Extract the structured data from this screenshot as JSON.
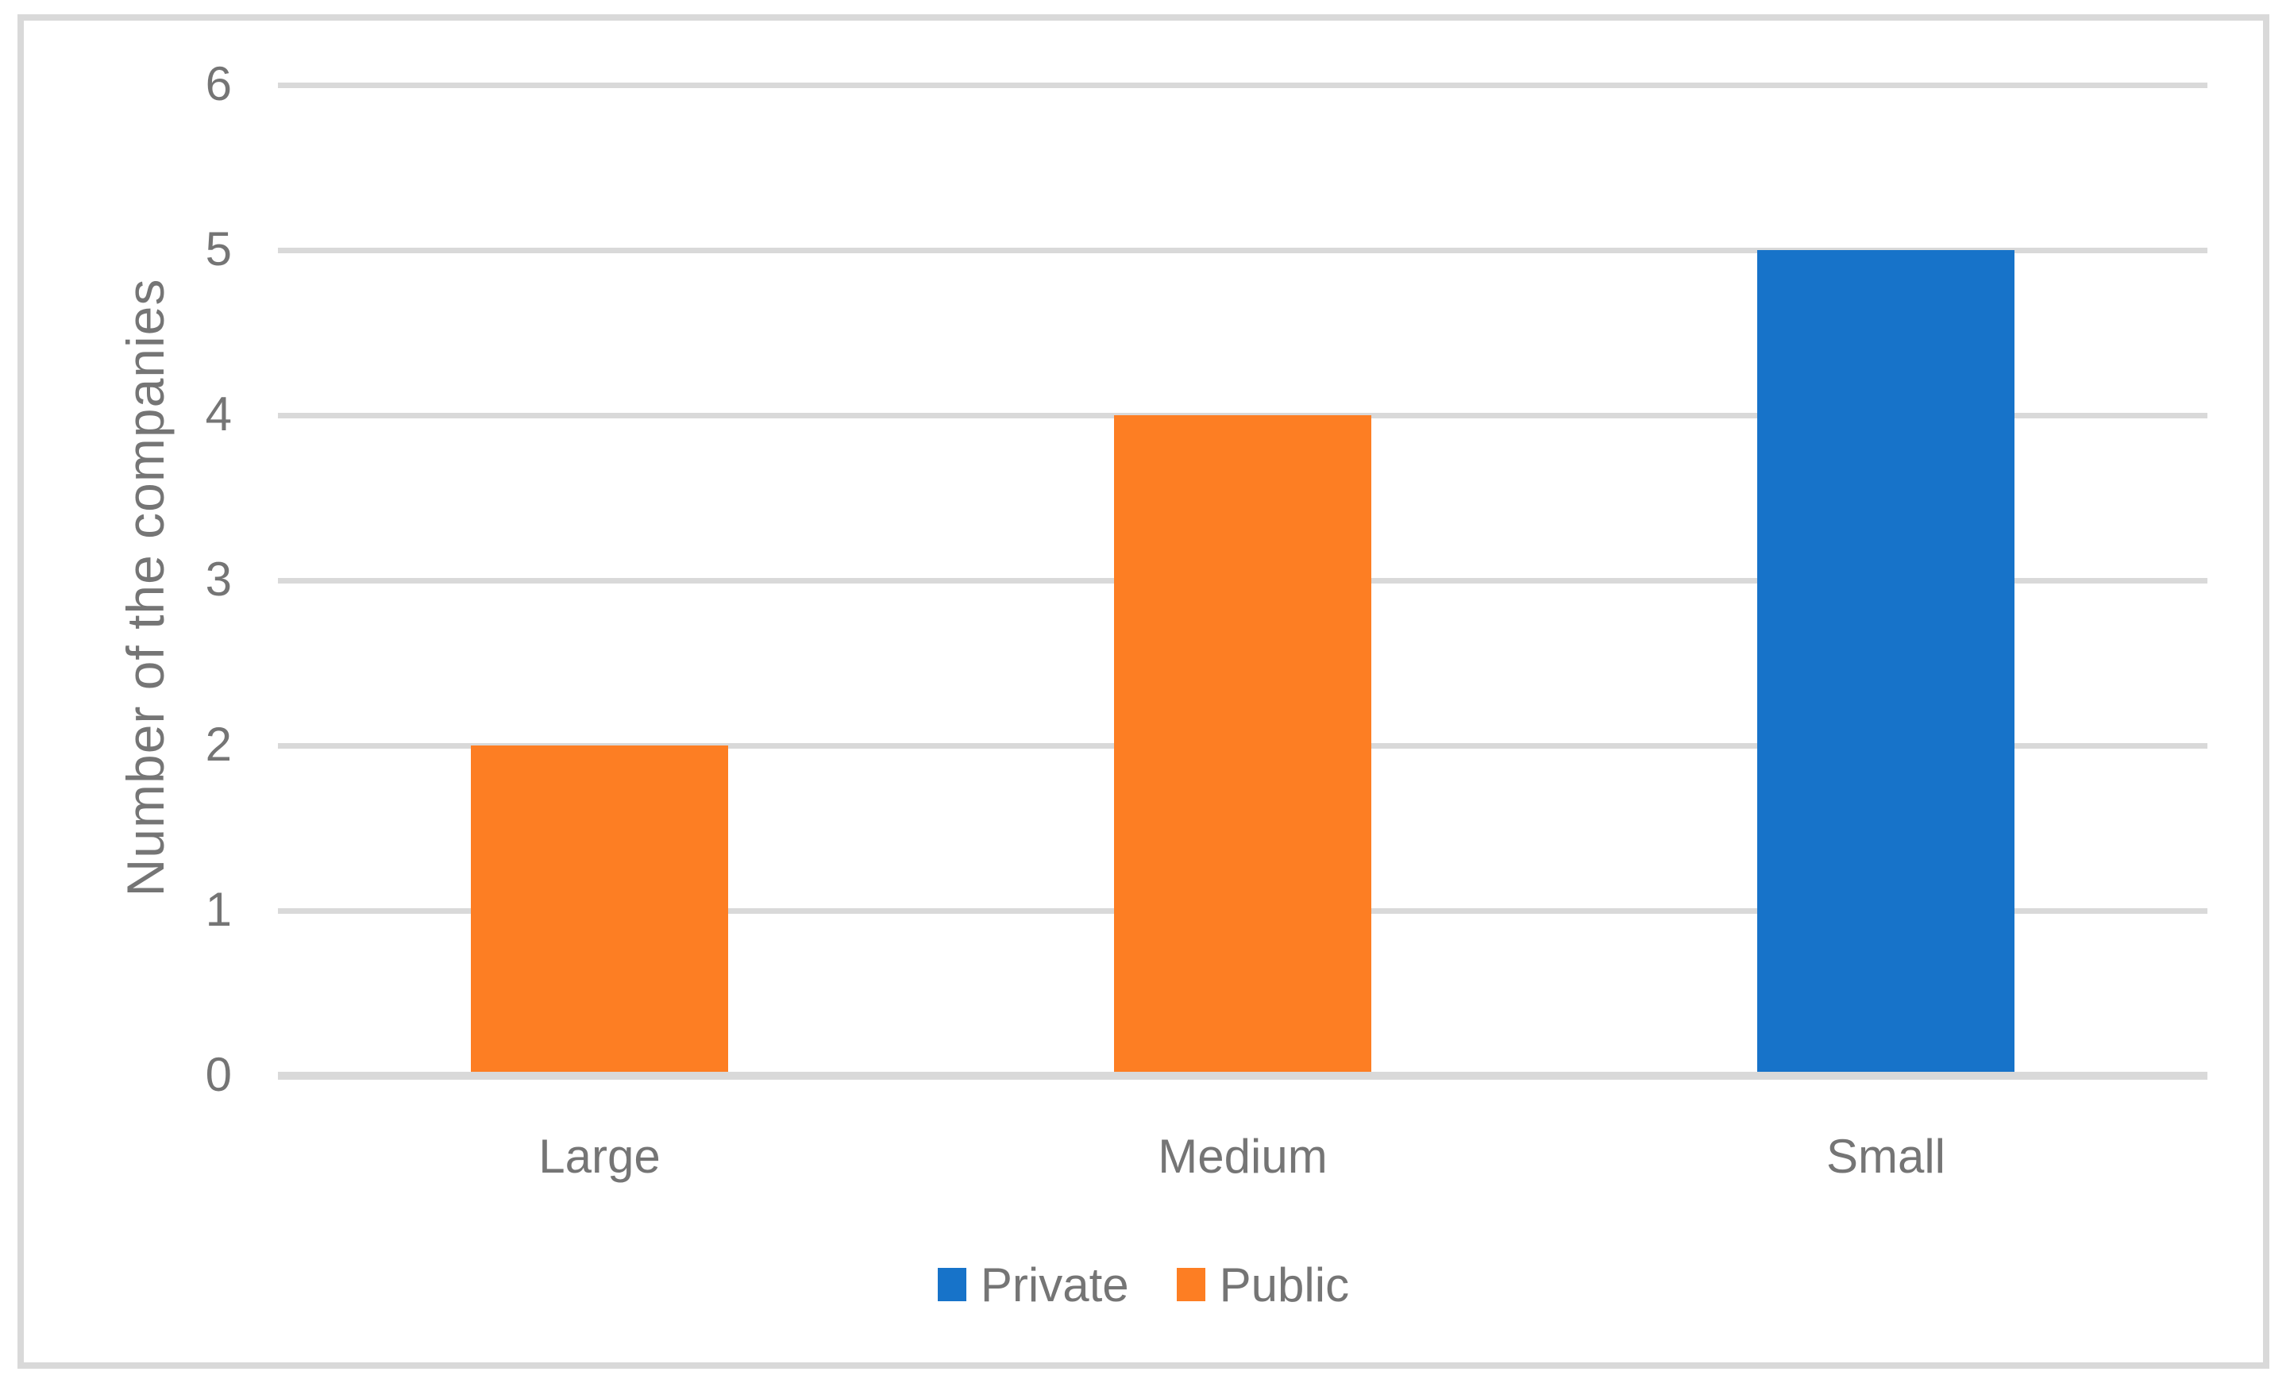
{
  "chart_data": {
    "type": "bar",
    "title": "",
    "categories": [
      "Large",
      "Medium",
      "Small"
    ],
    "series": [
      {
        "name": "Private",
        "color": "#1773C9",
        "values": [
          null,
          null,
          5
        ]
      },
      {
        "name": "Public",
        "color": "#FD7E23",
        "values": [
          2,
          4,
          null
        ]
      }
    ],
    "xlabel": "",
    "ylabel": "Number of the companies",
    "ylim": [
      0,
      6
    ],
    "yticks": [
      0,
      1,
      2,
      3,
      4,
      5,
      6
    ],
    "grid": true,
    "legend_position": "bottom-center",
    "colors": {
      "gridline": "#D9D9D9",
      "axis_line": "#D9D9D9",
      "frame_border": "#D9D9D9",
      "axis_text": "#757575",
      "background": "#FFFFFF"
    }
  }
}
